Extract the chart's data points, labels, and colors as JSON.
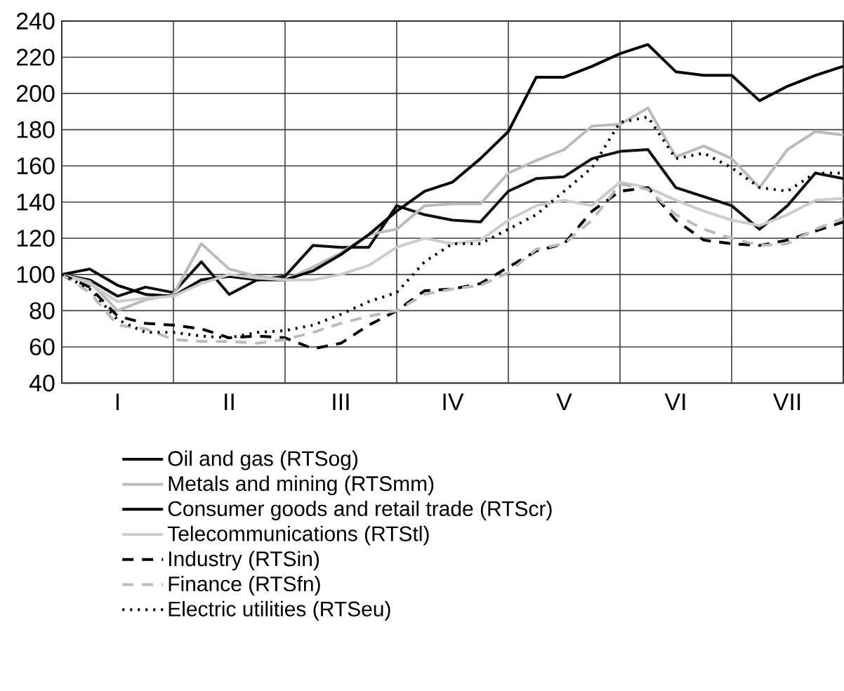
{
  "chart_data": {
    "type": "line",
    "ylim": [
      40,
      240
    ],
    "categories": [
      null,
      null,
      "I",
      null,
      null,
      null,
      "II",
      null,
      null,
      null,
      "III",
      null,
      null,
      null,
      "IV",
      null,
      null,
      null,
      "V",
      null,
      null,
      null,
      "VI",
      null,
      null,
      null,
      "VII",
      null,
      null
    ],
    "yticks": [
      40,
      60,
      80,
      100,
      120,
      140,
      160,
      180,
      200,
      220,
      240
    ],
    "grid": true,
    "legend": "bottom",
    "marker": "none",
    "series": [
      {
        "name": "Oil and gas (RTSog)",
        "color": "#111111",
        "line_style": "solid",
        "values": [
          100,
          97,
          88,
          93,
          90,
          107,
          89,
          97,
          99,
          116,
          115,
          115,
          138,
          133,
          130,
          129,
          146,
          153,
          154,
          164,
          168,
          169,
          148,
          143,
          138,
          125,
          138,
          156,
          153
        ]
      },
      {
        "name": "Metals and mining (RTSmm)",
        "color": "#bbbbbb",
        "line_style": "solid",
        "values": [
          100,
          96,
          80,
          86,
          89,
          117,
          103,
          99,
          97,
          104,
          112,
          122,
          125,
          138,
          139,
          139,
          156,
          163,
          169,
          182,
          183,
          192,
          165,
          171,
          164,
          148,
          169,
          179,
          177
        ]
      },
      {
        "name": "Consumer goods and retail trade (RTScr)",
        "color": "#000000",
        "line_style": "solid",
        "values": [
          100,
          103,
          94,
          89,
          88,
          97,
          99,
          97,
          97,
          102,
          111,
          122,
          135,
          146,
          151,
          164,
          179,
          209,
          209,
          215,
          222,
          227,
          212,
          210,
          210,
          196,
          204,
          210,
          215
        ]
      },
      {
        "name": "Telecommunications (RTStl)",
        "color": "#cccccc",
        "line_style": "solid",
        "values": [
          100,
          95,
          85,
          87,
          88,
          95,
          100,
          98,
          97,
          97,
          100,
          105,
          115,
          120,
          117,
          119,
          130,
          138,
          141,
          138,
          151,
          148,
          141,
          135,
          130,
          127,
          133,
          141,
          142
        ]
      },
      {
        "name": "Industry (RTSin)",
        "color": "#000000",
        "line_style": "dashed",
        "values": [
          100,
          93,
          77,
          73,
          72,
          70,
          65,
          66,
          65,
          59,
          62,
          72,
          80,
          91,
          92,
          95,
          104,
          113,
          117,
          135,
          146,
          148,
          130,
          119,
          117,
          116,
          119,
          124,
          129
        ]
      },
      {
        "name": "Finance (RTSfn)",
        "color": "#bbbbbb",
        "line_style": "dashed",
        "values": [
          100,
          90,
          72,
          70,
          64,
          63,
          63,
          62,
          64,
          68,
          73,
          77,
          80,
          89,
          92,
          94,
          101,
          114,
          117,
          130,
          150,
          147,
          133,
          125,
          120,
          116,
          117,
          125,
          131
        ]
      },
      {
        "name": "Electric utilities (RTSeu)",
        "color": "#000000",
        "line_style": "dotted",
        "values": [
          100,
          92,
          75,
          68,
          68,
          66,
          65,
          68,
          69,
          72,
          78,
          85,
          90,
          107,
          117,
          117,
          125,
          133,
          146,
          159,
          184,
          187,
          164,
          167,
          159,
          148,
          146,
          156,
          156
        ]
      }
    ]
  }
}
